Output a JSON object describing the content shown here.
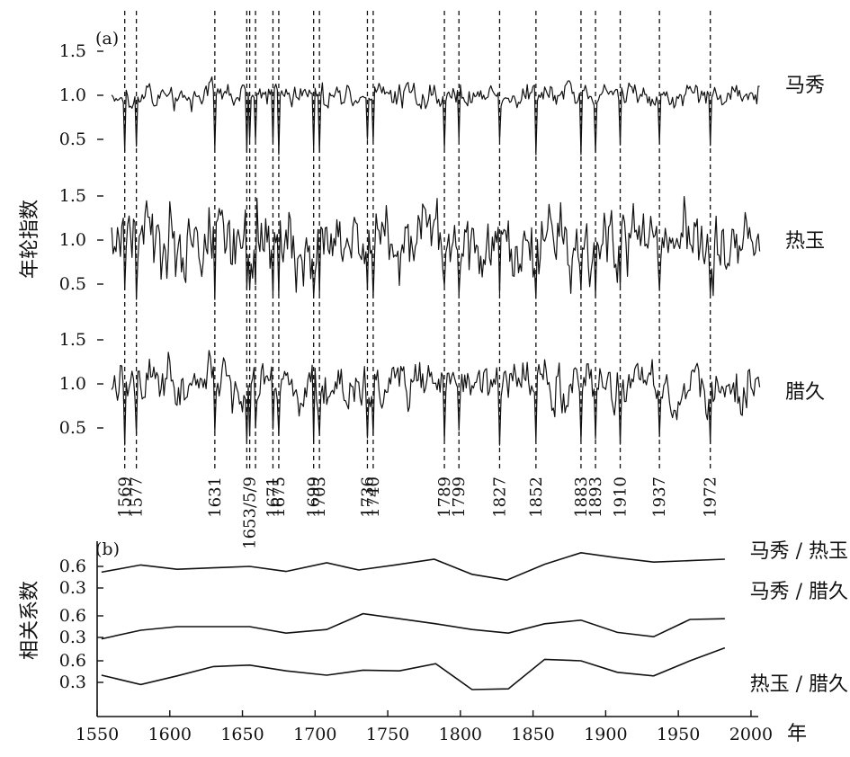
{
  "chart_data": [
    {
      "type": "line",
      "panel_label": "(a)",
      "ylabel": "年轮指数",
      "x_range": [
        1560,
        2006
      ],
      "yticks": [
        0.5,
        1.0,
        1.5
      ],
      "tick_labels": [
        "0.5",
        "1.0",
        "1.5"
      ],
      "series": [
        {
          "name": "马秀",
          "start": 1560,
          "end": 2006,
          "mean": 1.0,
          "sd": 0.1,
          "range": [
            0.3,
            1.45
          ]
        },
        {
          "name": "热玉",
          "start": 1560,
          "end": 2006,
          "mean": 1.0,
          "sd": 0.3,
          "range": [
            0.3,
            1.75
          ]
        },
        {
          "name": "腊久",
          "start": 1560,
          "end": 2006,
          "mean": 1.0,
          "sd": 0.2,
          "range": [
            0.3,
            1.5
          ]
        }
      ],
      "event_years": [
        1569,
        1577,
        1631,
        1653,
        1655,
        1659,
        1671,
        1675,
        1699,
        1703,
        1736,
        1740,
        1789,
        1799,
        1827,
        1852,
        1883,
        1893,
        1910,
        1937,
        1972
      ],
      "event_labels": [
        "1569",
        "1577",
        "1631",
        "1653/5/9",
        "1671",
        "1675",
        "1699",
        "1703",
        "1736",
        "1740",
        "1789",
        "1799",
        "1827",
        "1852",
        "1883",
        "1893",
        "1910",
        "1937",
        "1972"
      ],
      "event_label_years": [
        1569,
        1577,
        1631,
        1655,
        1671,
        1675,
        1699,
        1703,
        1736,
        1740,
        1789,
        1799,
        1827,
        1852,
        1883,
        1893,
        1910,
        1937,
        1972
      ]
    },
    {
      "type": "line",
      "panel_label": "(b)",
      "ylabel": "相关系数",
      "xlim": [
        1550,
        2005
      ],
      "xticks": [
        1550,
        1600,
        1650,
        1700,
        1750,
        1800,
        1850,
        1900,
        1950,
        2000
      ],
      "xtick_labels": [
        "1550",
        "1600",
        "1650",
        "1700",
        "1750",
        "1800",
        "1850",
        "1900",
        "1950",
        "2000"
      ],
      "x_unit": "年",
      "yticks": [
        0.3,
        0.6
      ],
      "ytick_labels": [
        "0.3",
        "0.6"
      ],
      "series": [
        {
          "name": "马秀 / 热玉",
          "x": [
            1553,
            1580,
            1605,
            1630,
            1655,
            1680,
            1708,
            1730,
            1755,
            1782,
            1808,
            1832,
            1858,
            1883,
            1908,
            1933,
            1958,
            1982
          ],
          "y": [
            0.52,
            0.62,
            0.56,
            0.58,
            0.6,
            0.53,
            0.65,
            0.55,
            0.62,
            0.7,
            0.49,
            0.41,
            0.63,
            0.79,
            0.72,
            0.66,
            0.68,
            0.7
          ]
        },
        {
          "name": "马秀 / 腊久",
          "x": [
            1553,
            1580,
            1605,
            1630,
            1655,
            1680,
            1708,
            1733,
            1758,
            1783,
            1808,
            1833,
            1858,
            1883,
            1908,
            1933,
            1958,
            1982
          ],
          "y": [
            0.28,
            0.4,
            0.45,
            0.45,
            0.45,
            0.36,
            0.41,
            0.63,
            0.56,
            0.49,
            0.41,
            0.36,
            0.49,
            0.54,
            0.37,
            0.31,
            0.55,
            0.56
          ]
        },
        {
          "name": "热玉 / 腊久",
          "x": [
            1553,
            1580,
            1605,
            1630,
            1655,
            1680,
            1708,
            1733,
            1758,
            1783,
            1808,
            1833,
            1858,
            1883,
            1908,
            1933,
            1958,
            1982
          ],
          "y": [
            0.4,
            0.27,
            0.39,
            0.52,
            0.54,
            0.46,
            0.4,
            0.47,
            0.46,
            0.56,
            0.2,
            0.21,
            0.62,
            0.6,
            0.44,
            0.39,
            0.6,
            0.78
          ]
        }
      ]
    }
  ]
}
